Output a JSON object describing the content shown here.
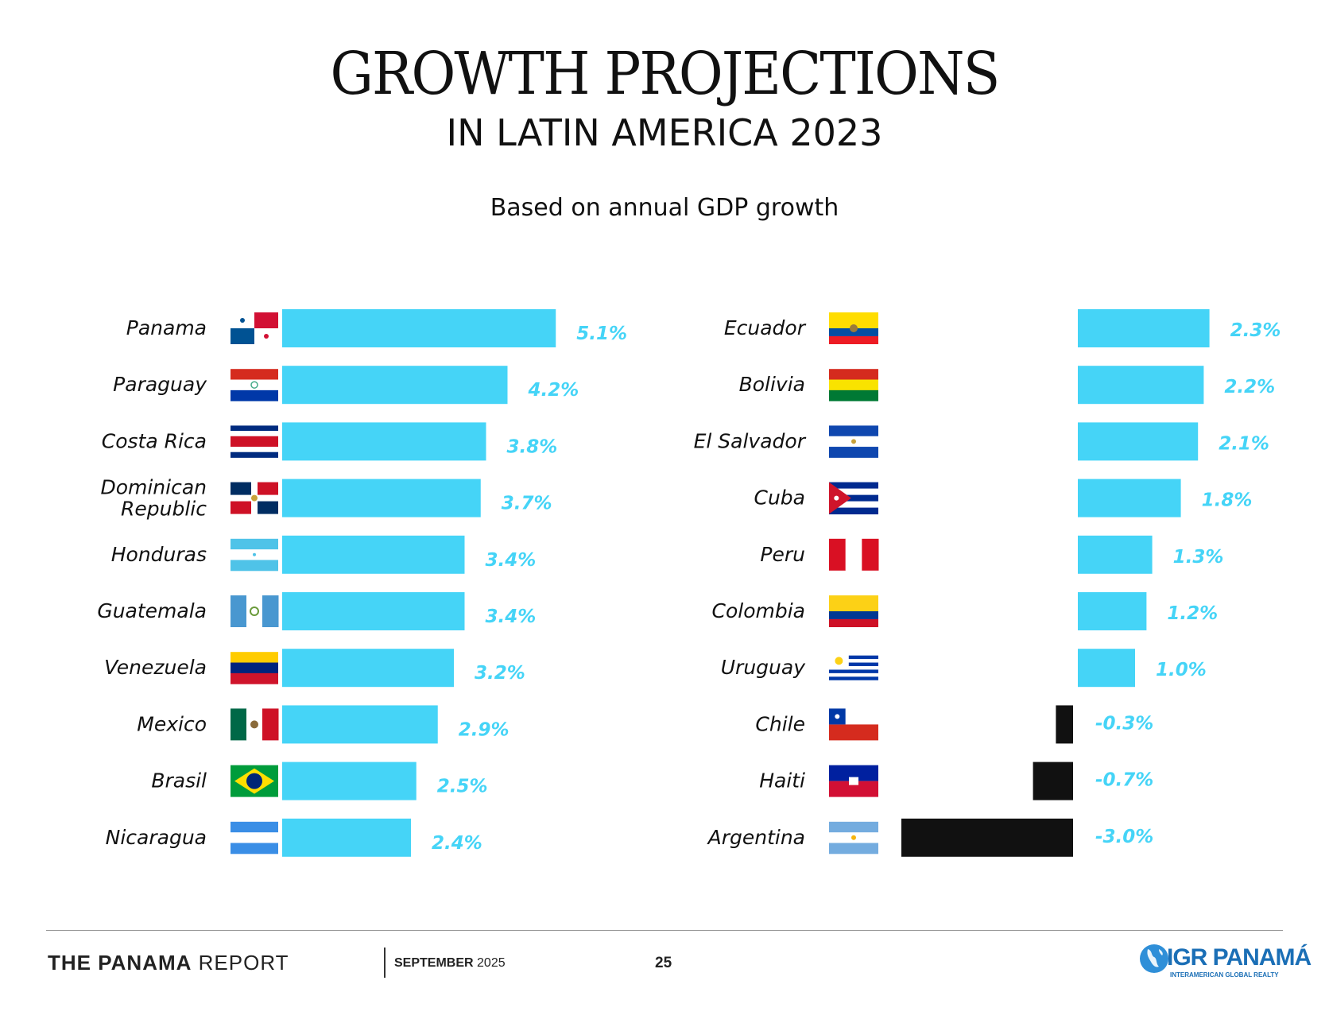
{
  "title": "GROWTH PROJECTIONS",
  "title_line2": "IN LATIN AMERICA 2023",
  "subtitle": "Based on annual GDP growth",
  "colors": {
    "positive": "#45d4f7",
    "negative": "#111111",
    "value_text": "#45d4f7"
  },
  "chart_data": [
    {
      "type": "bar",
      "orientation": "horizontal",
      "title": "Growth Projections in Latin America 2023 (left column)",
      "unit": "%",
      "categories": [
        "Panama",
        "Paraguay",
        "Costa Rica",
        "Dominican Republic",
        "Honduras",
        "Guatemala",
        "Venezuela",
        "Mexico",
        "Brasil",
        "Nicaragua"
      ],
      "values": [
        5.1,
        4.2,
        3.8,
        3.7,
        3.4,
        3.4,
        3.2,
        2.9,
        2.5,
        2.4
      ],
      "value_labels": [
        "5.1%",
        "4.2%",
        "3.8%",
        "3.7%",
        "3.4%",
        "3.4%",
        "3.2%",
        "2.9%",
        "2.5%",
        "2.4%"
      ]
    },
    {
      "type": "bar",
      "orientation": "horizontal",
      "title": "Growth Projections in Latin America 2023 (right column)",
      "unit": "%",
      "categories": [
        "Ecuador",
        "Bolivia",
        "El Salvador",
        "Cuba",
        "Peru",
        "Colombia",
        "Uruguay",
        "Chile",
        "Haiti",
        "Argentina"
      ],
      "values": [
        2.3,
        2.2,
        2.1,
        1.8,
        1.3,
        1.2,
        1.0,
        -0.3,
        -0.7,
        -3.0
      ],
      "value_labels": [
        "2.3%",
        "2.2%",
        "2.1%",
        "1.8%",
        "1.3%",
        "1.2%",
        "1.0%",
        "-0.3%",
        "-0.7%",
        "-3.0%"
      ]
    }
  ],
  "footer": {
    "publication_bold": "THE PANAMA",
    "publication_light": " REPORT",
    "month_bold": "SEPTEMBER",
    "year": " 2025",
    "page": "25",
    "logo_text": "IGR PANAMÁ",
    "logo_tagline": "INTERAMERICAN GLOBAL REALTY"
  }
}
